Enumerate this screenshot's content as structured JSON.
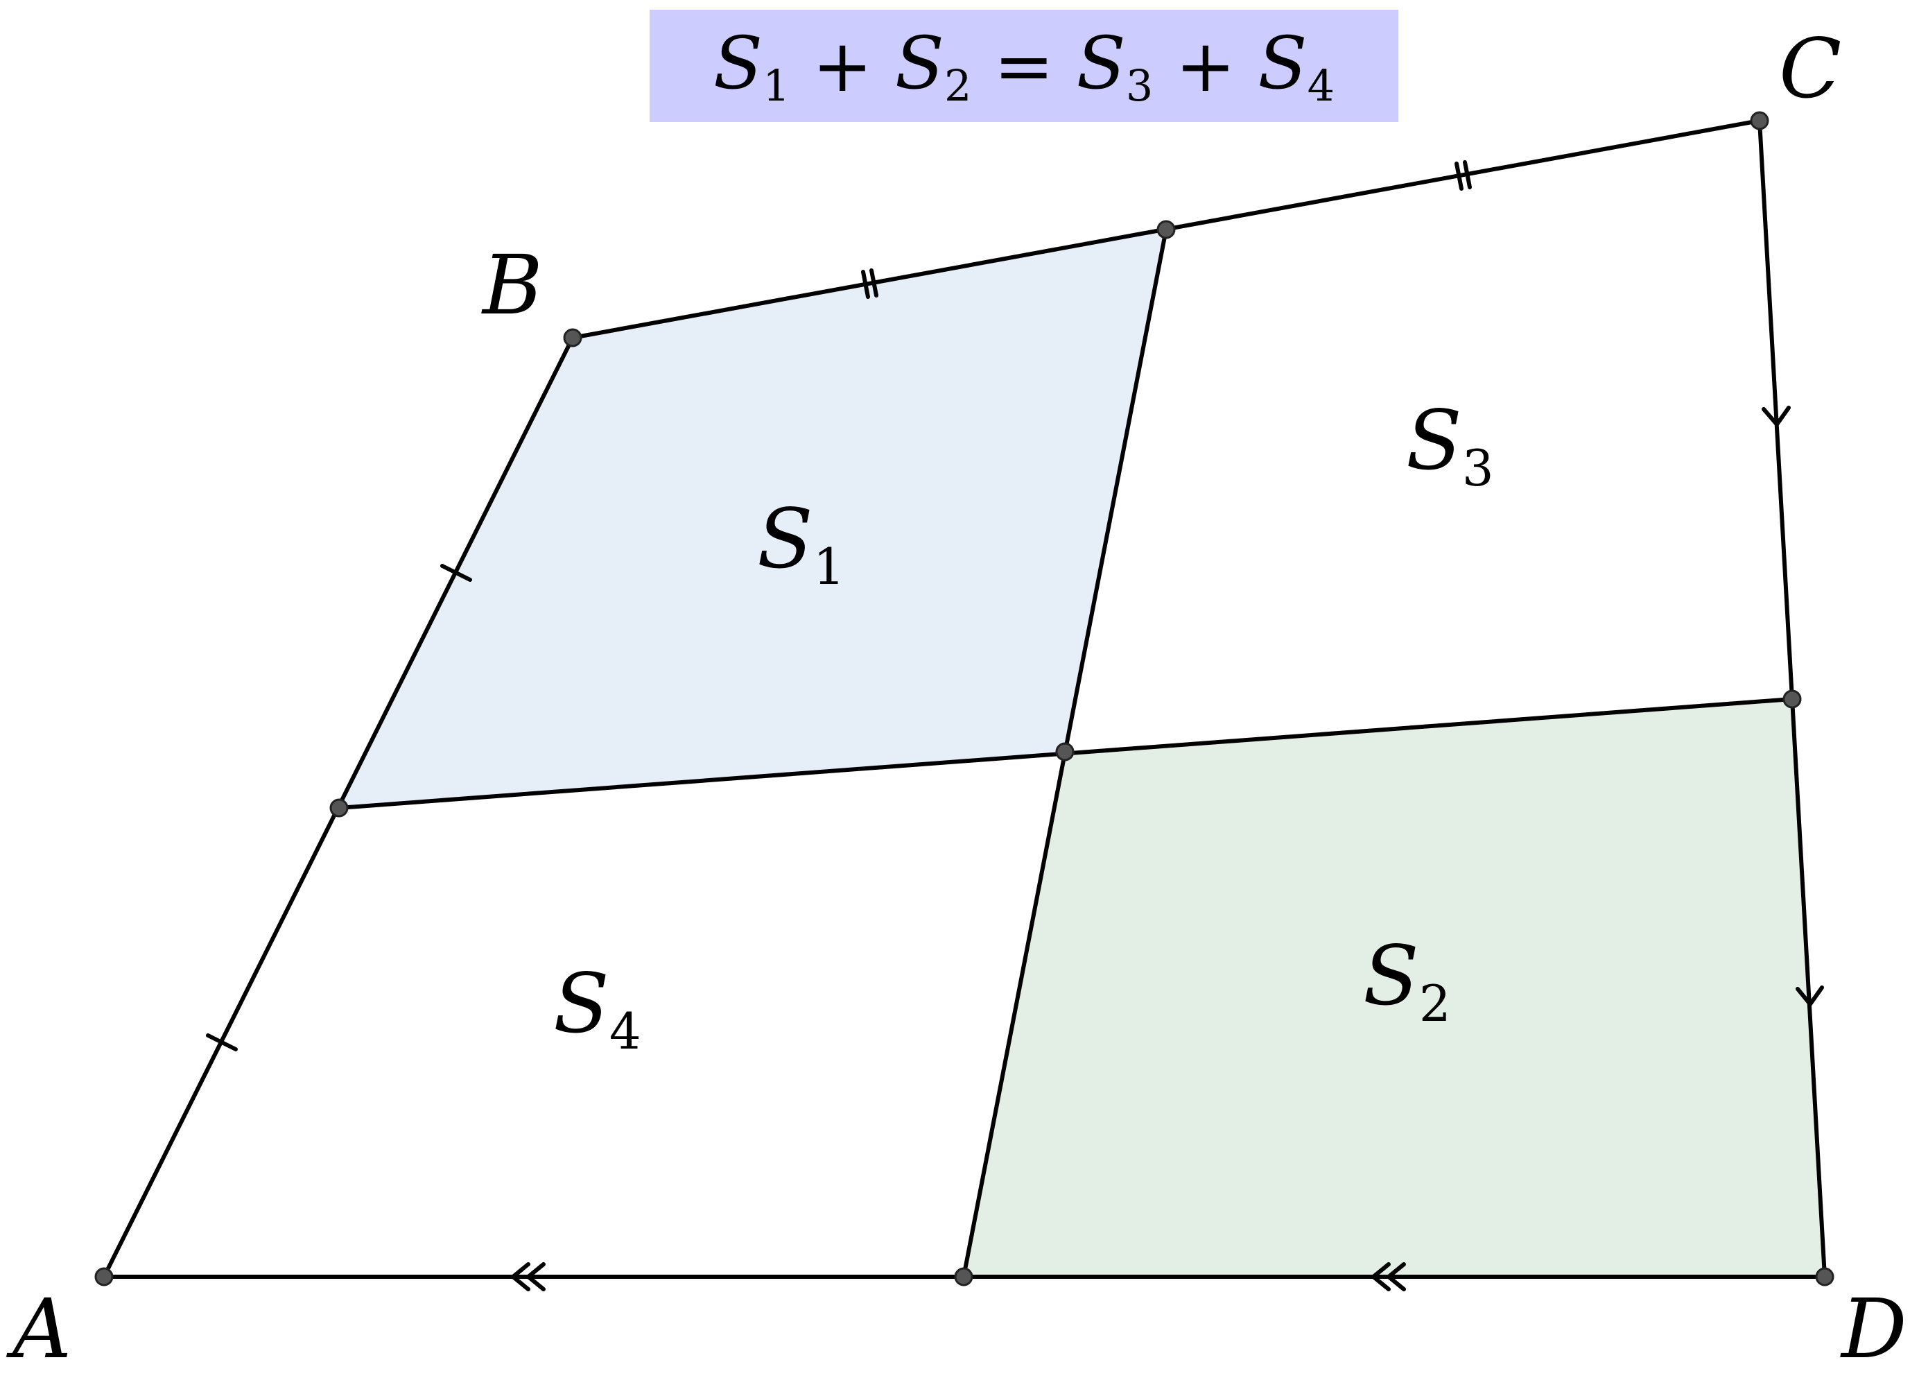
{
  "formula": {
    "lhs1": "S",
    "lhs1_sub": "1",
    "plus1": "+",
    "lhs2": "S",
    "lhs2_sub": "2",
    "eq": "=",
    "rhs1": "S",
    "rhs1_sub": "3",
    "plus2": "+",
    "rhs2": "S",
    "rhs2_sub": "4",
    "background_color": "#ccccff"
  },
  "vertices": {
    "A": "A",
    "B": "B",
    "C": "C",
    "D": "D"
  },
  "regions": {
    "s1": {
      "letter": "S",
      "sub": "1",
      "fill": "#e6eef8"
    },
    "s2": {
      "letter": "S",
      "sub": "2",
      "fill": "#e3eee5"
    },
    "s3": {
      "letter": "S",
      "sub": "3",
      "fill": "#ffffff"
    },
    "s4": {
      "letter": "S",
      "sub": "4",
      "fill": "#ffffff"
    }
  },
  "colors": {
    "line": "#000000",
    "point": "#555555"
  }
}
